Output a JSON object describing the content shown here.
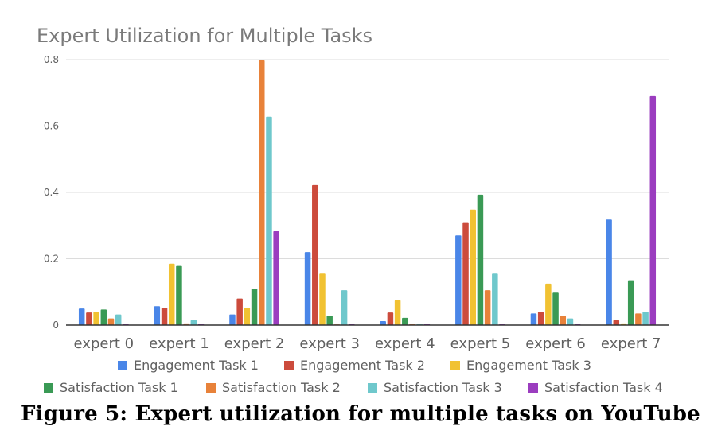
{
  "chart_data": {
    "type": "bar",
    "title": "Expert Utilization for Multiple Tasks",
    "categories": [
      "expert 0",
      "expert 1",
      "expert 2",
      "expert 3",
      "expert 4",
      "expert 5",
      "expert 6",
      "expert 7"
    ],
    "ylim": [
      0,
      0.8
    ],
    "yticks": [
      "0",
      "0.2",
      "0.4",
      "0.6",
      "0.8"
    ],
    "grid": true,
    "legend_position": "bottom",
    "series": [
      {
        "name": "Engagement Task 1",
        "color": "#4a86e8",
        "values": [
          0.05,
          0.057,
          0.032,
          0.22,
          0.012,
          0.27,
          0.035,
          0.318
        ]
      },
      {
        "name": "Engagement Task 2",
        "color": "#cc4b3c",
        "values": [
          0.038,
          0.052,
          0.08,
          0.422,
          0.038,
          0.31,
          0.04,
          0.015
        ]
      },
      {
        "name": "Engagement Task 3",
        "color": "#f1c232",
        "values": [
          0.04,
          0.185,
          0.052,
          0.155,
          0.075,
          0.348,
          0.125,
          0.005
        ]
      },
      {
        "name": "Satisfaction Task 1",
        "color": "#3a9a55",
        "values": [
          0.047,
          0.178,
          0.11,
          0.028,
          0.022,
          0.393,
          0.1,
          0.135
        ]
      },
      {
        "name": "Satisfaction Task 2",
        "color": "#e8823a",
        "values": [
          0.02,
          0.005,
          0.798,
          0.002,
          0.003,
          0.105,
          0.028,
          0.035
        ]
      },
      {
        "name": "Satisfaction Task 3",
        "color": "#6fc8cc",
        "values": [
          0.032,
          0.015,
          0.628,
          0.105,
          0.003,
          0.155,
          0.02,
          0.04
        ]
      },
      {
        "name": "Satisfaction Task 4",
        "color": "#9b3dbf",
        "values": [
          0.003,
          0.003,
          0.283,
          0.003,
          0.003,
          0.003,
          0.003,
          0.69
        ]
      }
    ]
  },
  "caption": "Figure 5: Expert utilization for multiple tasks on YouTube."
}
